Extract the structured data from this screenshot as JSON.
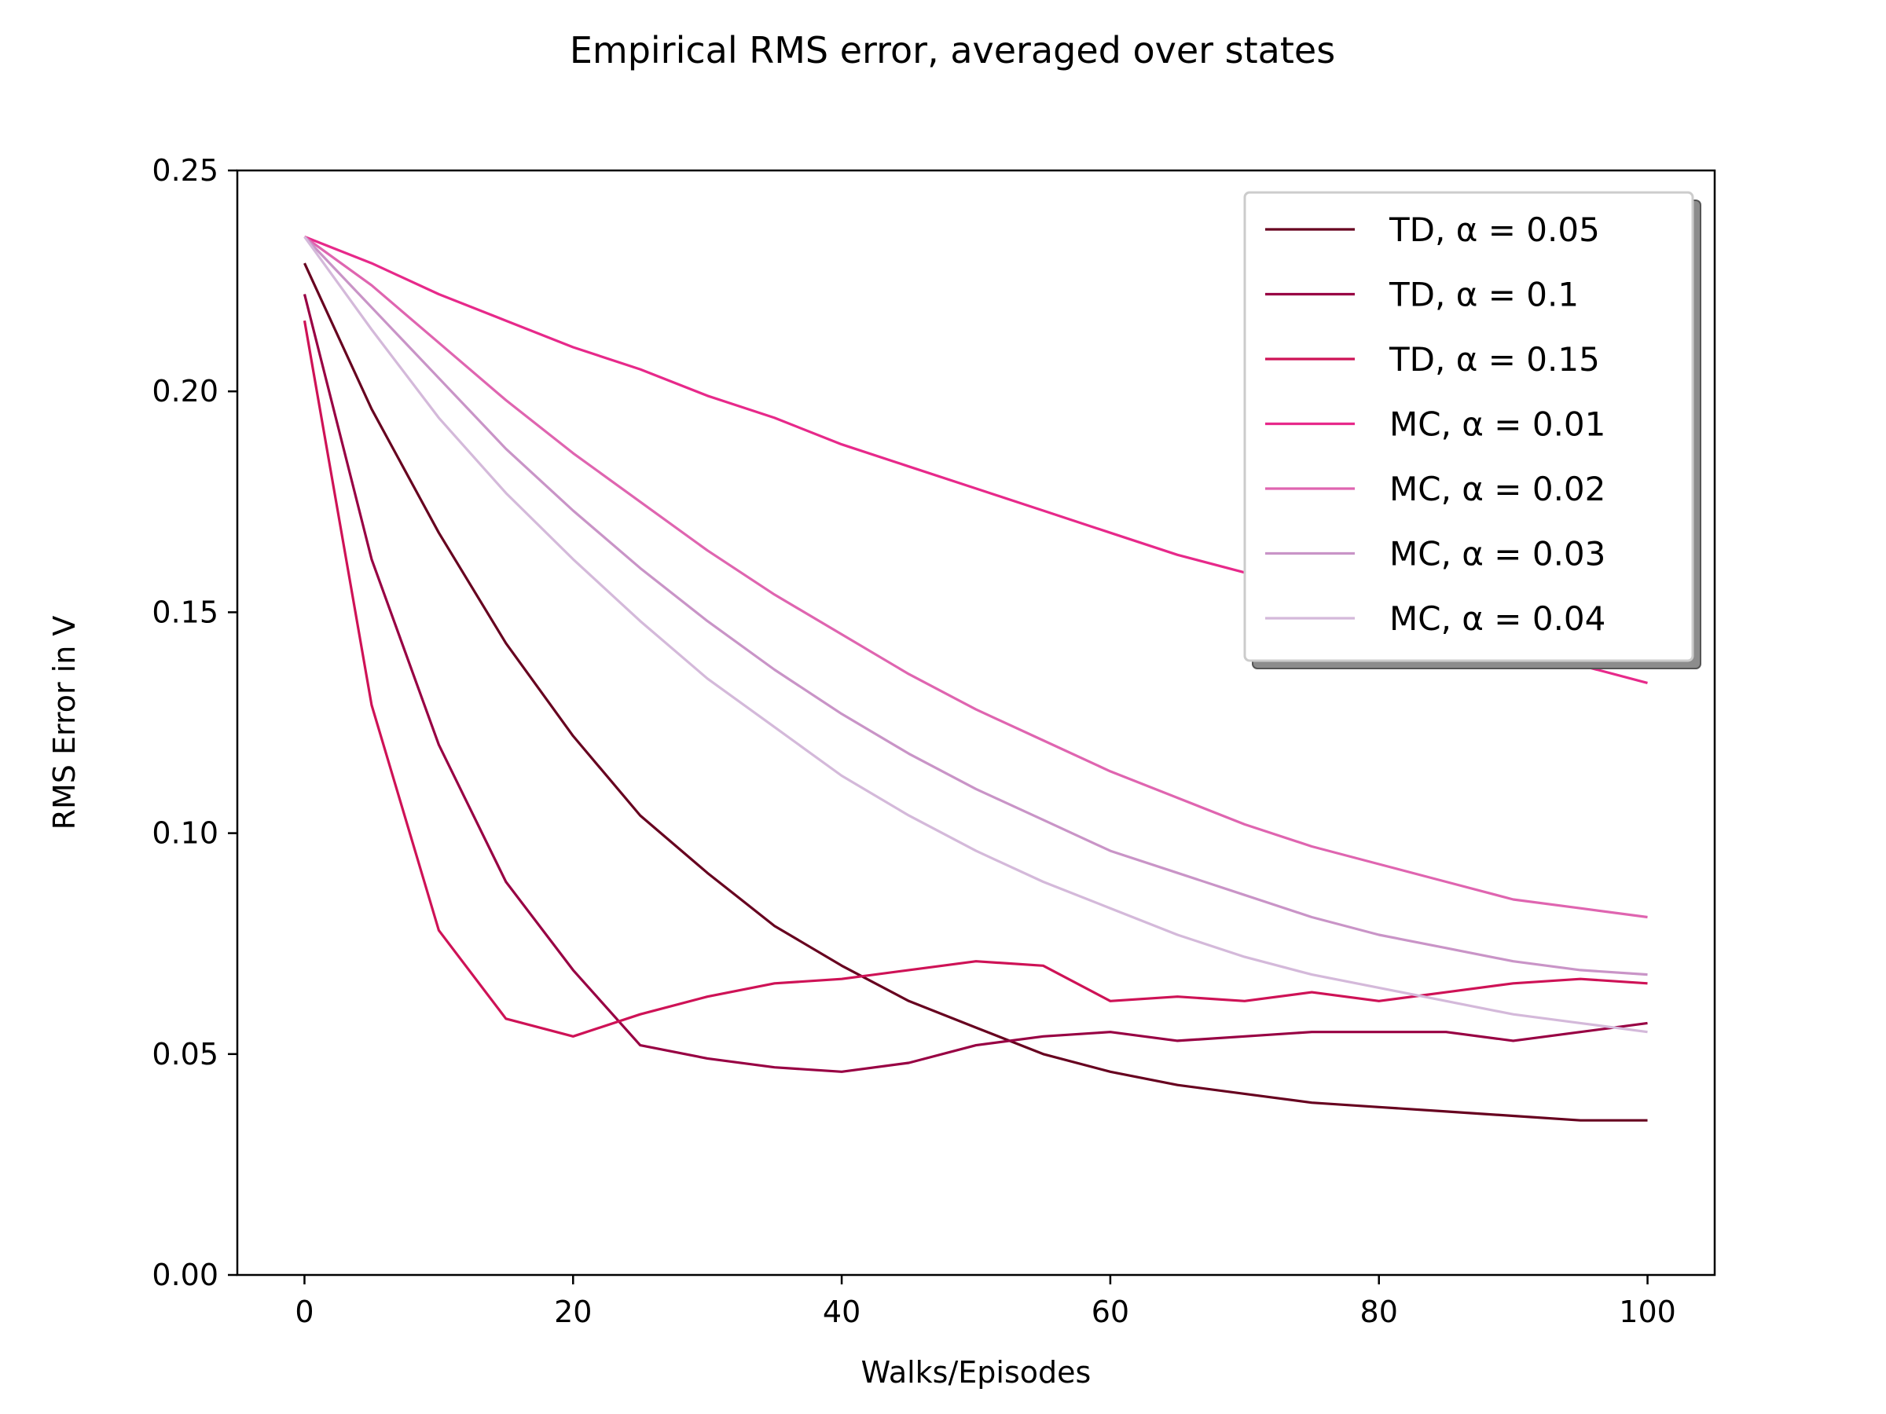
{
  "chart_data": {
    "type": "line",
    "title": "Empirical RMS error, averaged over states",
    "xlabel": "Walks/Episodes",
    "ylabel": "RMS Error in V",
    "xlim": [
      -5,
      105
    ],
    "ylim": [
      0,
      0.25
    ],
    "xticks": [
      0,
      20,
      40,
      60,
      80,
      100
    ],
    "xtick_labels": [
      "0",
      "20",
      "40",
      "60",
      "80",
      "100"
    ],
    "yticks": [
      0,
      0.05,
      0.1,
      0.15,
      0.2,
      0.25
    ],
    "ytick_labels": [
      "0.00",
      "0.05",
      "0.10",
      "0.15",
      "0.20",
      "0.25"
    ],
    "grid": false,
    "legend_position": "top-right",
    "x": [
      0,
      5,
      10,
      15,
      20,
      25,
      30,
      35,
      40,
      45,
      50,
      55,
      60,
      65,
      70,
      75,
      80,
      85,
      90,
      95,
      100
    ],
    "series": [
      {
        "name": "TD, α = 0.05",
        "color": "#67001f",
        "values": [
          0.229,
          0.196,
          0.168,
          0.143,
          0.122,
          0.104,
          0.091,
          0.079,
          0.07,
          0.062,
          0.056,
          0.05,
          0.046,
          0.043,
          0.041,
          0.039,
          0.038,
          0.037,
          0.036,
          0.035,
          0.035
        ]
      },
      {
        "name": "TD, α = 0.1",
        "color": "#980043",
        "values": [
          0.222,
          0.162,
          0.12,
          0.089,
          0.069,
          0.052,
          0.049,
          0.047,
          0.046,
          0.048,
          0.052,
          0.054,
          0.055,
          0.053,
          0.054,
          0.055,
          0.055,
          0.055,
          0.053,
          0.055,
          0.057
        ]
      },
      {
        "name": "TD, α = 0.15",
        "color": "#ce1256",
        "values": [
          0.216,
          0.129,
          0.078,
          0.058,
          0.054,
          0.059,
          0.063,
          0.066,
          0.067,
          0.069,
          0.071,
          0.07,
          0.062,
          0.063,
          0.062,
          0.064,
          0.062,
          0.064,
          0.066,
          0.067,
          0.066
        ]
      },
      {
        "name": "MC, α = 0.01",
        "color": "#e7298a",
        "values": [
          0.235,
          0.229,
          0.222,
          0.216,
          0.21,
          0.205,
          0.199,
          0.194,
          0.188,
          0.183,
          0.178,
          0.173,
          0.168,
          0.163,
          0.159,
          0.155,
          0.15,
          0.146,
          0.142,
          0.138,
          0.134
        ]
      },
      {
        "name": "MC, α = 0.02",
        "color": "#df65b0",
        "values": [
          0.235,
          0.224,
          0.211,
          0.198,
          0.186,
          0.175,
          0.164,
          0.154,
          0.145,
          0.136,
          0.128,
          0.121,
          0.114,
          0.108,
          0.102,
          0.097,
          0.093,
          0.089,
          0.085,
          0.083,
          0.081
        ]
      },
      {
        "name": "MC, α = 0.03",
        "color": "#c994c7",
        "values": [
          0.235,
          0.219,
          0.203,
          0.187,
          0.173,
          0.16,
          0.148,
          0.137,
          0.127,
          0.118,
          0.11,
          0.103,
          0.096,
          0.091,
          0.086,
          0.081,
          0.077,
          0.074,
          0.071,
          0.069,
          0.068
        ]
      },
      {
        "name": "MC, α = 0.04",
        "color": "#d4b9da",
        "values": [
          0.235,
          0.214,
          0.194,
          0.177,
          0.162,
          0.148,
          0.135,
          0.124,
          0.113,
          0.104,
          0.096,
          0.089,
          0.083,
          0.077,
          0.072,
          0.068,
          0.065,
          0.062,
          0.059,
          0.057,
          0.055
        ]
      }
    ]
  }
}
